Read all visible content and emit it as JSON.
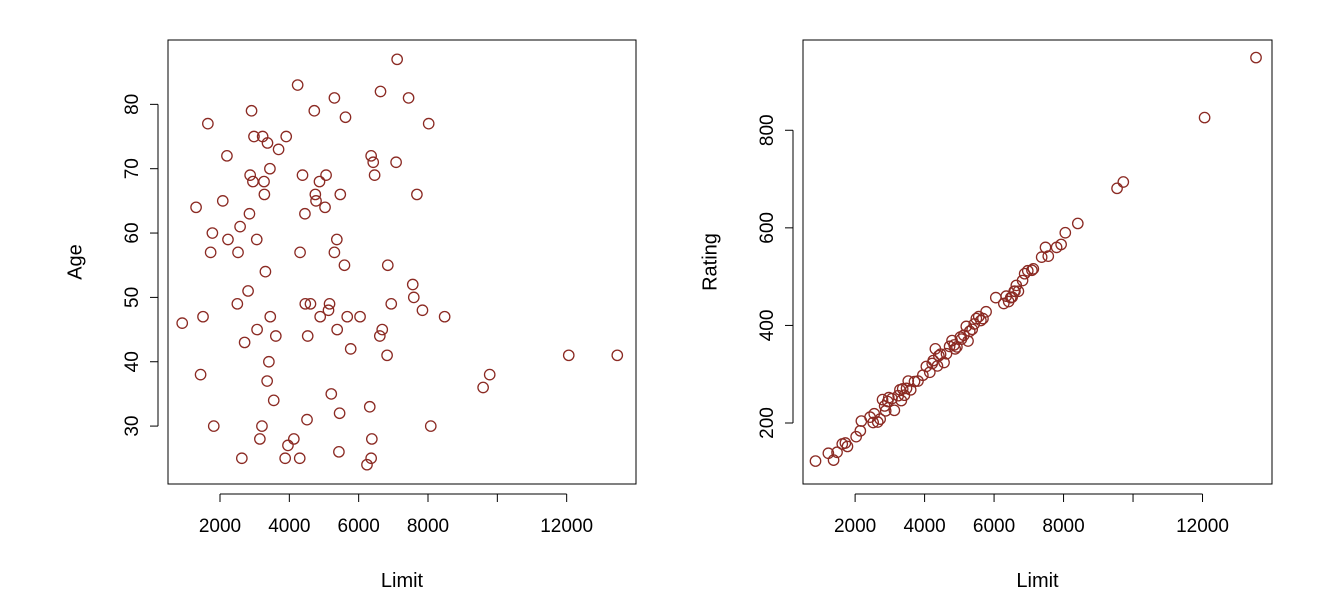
{
  "style": {
    "point_color": "#8b2a23",
    "axis_color": "#000000",
    "background": "#ffffff"
  },
  "chart_data": [
    {
      "type": "scatter",
      "title": "",
      "xlabel": "Limit",
      "ylabel": "Age",
      "xlim": [
        500,
        14000
      ],
      "ylim": [
        21,
        90
      ],
      "xticks": [
        2000,
        4000,
        6000,
        8000,
        10000,
        12000
      ],
      "xtick_labels": [
        "2000",
        "4000",
        "6000",
        "8000",
        "",
        "12000"
      ],
      "yticks": [
        30,
        40,
        50,
        60,
        70,
        80
      ],
      "ytick_labels": [
        "30",
        "40",
        "50",
        "60",
        "70",
        "80"
      ],
      "grid": false,
      "points": [
        [
          910,
          46
        ],
        [
          1310,
          64
        ],
        [
          1440,
          38
        ],
        [
          1510,
          47
        ],
        [
          1650,
          77
        ],
        [
          1730,
          57
        ],
        [
          1780,
          60
        ],
        [
          1820,
          30
        ],
        [
          2080,
          65
        ],
        [
          2200,
          72
        ],
        [
          2230,
          59
        ],
        [
          2500,
          49
        ],
        [
          2520,
          57
        ],
        [
          2580,
          61
        ],
        [
          2630,
          25
        ],
        [
          2710,
          43
        ],
        [
          2810,
          51
        ],
        [
          2850,
          63
        ],
        [
          2870,
          69
        ],
        [
          2910,
          79
        ],
        [
          2950,
          68
        ],
        [
          2980,
          75
        ],
        [
          3060,
          59
        ],
        [
          3070,
          45
        ],
        [
          3150,
          28
        ],
        [
          3210,
          30
        ],
        [
          3230,
          75
        ],
        [
          3270,
          68
        ],
        [
          3280,
          66
        ],
        [
          3310,
          54
        ],
        [
          3360,
          37
        ],
        [
          3370,
          74
        ],
        [
          3410,
          40
        ],
        [
          3440,
          70
        ],
        [
          3450,
          47
        ],
        [
          3550,
          34
        ],
        [
          3610,
          44
        ],
        [
          3690,
          73
        ],
        [
          3880,
          25
        ],
        [
          3910,
          75
        ],
        [
          3960,
          27
        ],
        [
          4130,
          28
        ],
        [
          4240,
          83
        ],
        [
          4300,
          25
        ],
        [
          4310,
          57
        ],
        [
          4380,
          69
        ],
        [
          4450,
          63
        ],
        [
          4460,
          49
        ],
        [
          4510,
          31
        ],
        [
          4530,
          44
        ],
        [
          4610,
          49
        ],
        [
          4720,
          79
        ],
        [
          4750,
          66
        ],
        [
          4770,
          65
        ],
        [
          4870,
          68
        ],
        [
          4890,
          47
        ],
        [
          5030,
          64
        ],
        [
          5060,
          69
        ],
        [
          5130,
          48
        ],
        [
          5160,
          49
        ],
        [
          5210,
          35
        ],
        [
          5300,
          57
        ],
        [
          5300,
          81
        ],
        [
          5370,
          59
        ],
        [
          5380,
          45
        ],
        [
          5430,
          26
        ],
        [
          5450,
          32
        ],
        [
          5470,
          66
        ],
        [
          5590,
          55
        ],
        [
          5620,
          78
        ],
        [
          5670,
          47
        ],
        [
          5770,
          42
        ],
        [
          6040,
          47
        ],
        [
          6240,
          24
        ],
        [
          6320,
          33
        ],
        [
          6360,
          25
        ],
        [
          6360,
          72
        ],
        [
          6380,
          28
        ],
        [
          6420,
          71
        ],
        [
          6460,
          69
        ],
        [
          6610,
          44
        ],
        [
          6630,
          82
        ],
        [
          6680,
          45
        ],
        [
          6820,
          41
        ],
        [
          6840,
          55
        ],
        [
          6940,
          49
        ],
        [
          7080,
          71
        ],
        [
          7110,
          87
        ],
        [
          7440,
          81
        ],
        [
          7560,
          52
        ],
        [
          7590,
          50
        ],
        [
          7680,
          66
        ],
        [
          7840,
          48
        ],
        [
          8020,
          77
        ],
        [
          8080,
          30
        ],
        [
          8480,
          47
        ],
        [
          9590,
          36
        ],
        [
          9780,
          38
        ],
        [
          12060,
          41
        ],
        [
          13460,
          41
        ]
      ]
    },
    {
      "type": "scatter",
      "title": "",
      "xlabel": "Limit",
      "ylabel": "Rating",
      "xlim": [
        500,
        14000
      ],
      "ylim": [
        75,
        985
      ],
      "xticks": [
        2000,
        4000,
        6000,
        8000,
        10000,
        12000
      ],
      "xtick_labels": [
        "2000",
        "4000",
        "6000",
        "8000",
        "",
        "12000"
      ],
      "yticks": [
        200,
        400,
        600,
        800
      ],
      "ytick_labels": [
        "200",
        "400",
        "600",
        "800"
      ],
      "grid": false,
      "points": [
        [
          860,
          122
        ],
        [
          1230,
          138
        ],
        [
          1380,
          124
        ],
        [
          1480,
          140
        ],
        [
          1630,
          157
        ],
        [
          1720,
          159
        ],
        [
          1780,
          152
        ],
        [
          2030,
          172
        ],
        [
          2150,
          184
        ],
        [
          2180,
          204
        ],
        [
          2430,
          212
        ],
        [
          2520,
          201
        ],
        [
          2550,
          219
        ],
        [
          2650,
          202
        ],
        [
          2720,
          208
        ],
        [
          2790,
          248
        ],
        [
          2850,
          235
        ],
        [
          2880,
          225
        ],
        [
          2940,
          244
        ],
        [
          2970,
          252
        ],
        [
          3060,
          250
        ],
        [
          3130,
          226
        ],
        [
          3240,
          256
        ],
        [
          3290,
          268
        ],
        [
          3330,
          246
        ],
        [
          3370,
          270
        ],
        [
          3420,
          257
        ],
        [
          3480,
          271
        ],
        [
          3530,
          286
        ],
        [
          3600,
          268
        ],
        [
          3710,
          285
        ],
        [
          3810,
          286
        ],
        [
          3950,
          298
        ],
        [
          4050,
          316
        ],
        [
          4150,
          304
        ],
        [
          4220,
          322
        ],
        [
          4250,
          328
        ],
        [
          4310,
          352
        ],
        [
          4370,
          317
        ],
        [
          4410,
          338
        ],
        [
          4460,
          341
        ],
        [
          4560,
          324
        ],
        [
          4630,
          342
        ],
        [
          4720,
          357
        ],
        [
          4790,
          369
        ],
        [
          4850,
          360
        ],
        [
          4880,
          352
        ],
        [
          4930,
          356
        ],
        [
          5030,
          376
        ],
        [
          5060,
          372
        ],
        [
          5130,
          380
        ],
        [
          5200,
          398
        ],
        [
          5250,
          368
        ],
        [
          5300,
          388
        ],
        [
          5370,
          392
        ],
        [
          5430,
          403
        ],
        [
          5490,
          414
        ],
        [
          5560,
          418
        ],
        [
          5620,
          410
        ],
        [
          5680,
          414
        ],
        [
          5770,
          428
        ],
        [
          6050,
          457
        ],
        [
          6280,
          445
        ],
        [
          6350,
          460
        ],
        [
          6420,
          449
        ],
        [
          6480,
          457
        ],
        [
          6520,
          458
        ],
        [
          6580,
          470
        ],
        [
          6600,
          470
        ],
        [
          6640,
          482
        ],
        [
          6700,
          470
        ],
        [
          6820,
          492
        ],
        [
          6880,
          506
        ],
        [
          6970,
          512
        ],
        [
          7090,
          513
        ],
        [
          7130,
          516
        ],
        [
          7370,
          540
        ],
        [
          7480,
          560
        ],
        [
          7560,
          542
        ],
        [
          7800,
          560
        ],
        [
          7930,
          566
        ],
        [
          8050,
          590
        ],
        [
          8410,
          609
        ],
        [
          9540,
          681
        ],
        [
          9720,
          694
        ],
        [
          12060,
          826
        ],
        [
          13540,
          949
        ]
      ]
    }
  ]
}
